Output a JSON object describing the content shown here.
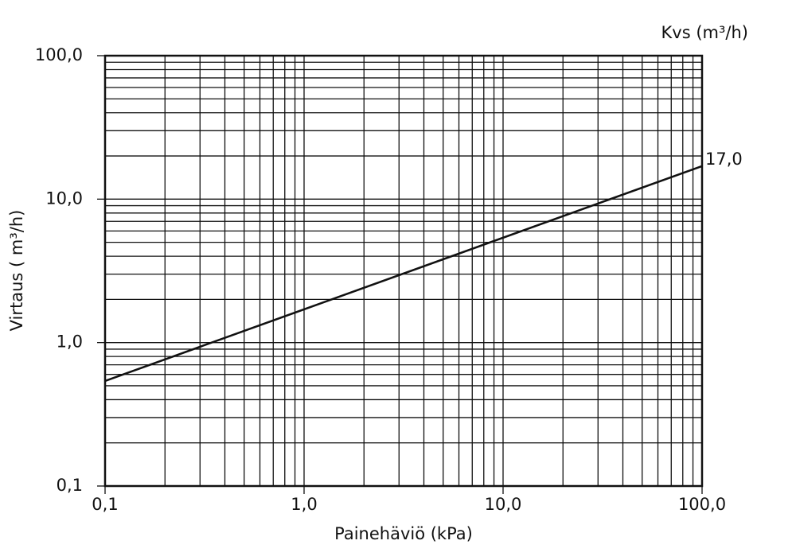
{
  "chart_data": {
    "type": "line",
    "x_label": "Painehäviö (kPa)",
    "y_label": "Virtaus ( m³/h)",
    "legend_title": "Kvs (m³/h)",
    "log_x": true,
    "log_y": true,
    "grid": true,
    "minor_grid": true,
    "xlim": [
      0.1,
      100
    ],
    "ylim": [
      0.1,
      100
    ],
    "xticks": [
      {
        "value": 0.1,
        "label": "0,1"
      },
      {
        "value": 1,
        "label": "1,0"
      },
      {
        "value": 10,
        "label": "10,0"
      },
      {
        "value": 100,
        "label": "100,0"
      }
    ],
    "yticks": [
      {
        "value": 0.1,
        "label": "0,1"
      },
      {
        "value": 1,
        "label": "1,0"
      },
      {
        "value": 10,
        "label": "10,0"
      },
      {
        "value": 100,
        "label": "100,0"
      }
    ],
    "x": [
      0.1,
      100
    ],
    "series": [
      {
        "name": "17,0",
        "color": "#111111",
        "values": [
          0.54,
          17
        ]
      }
    ]
  }
}
